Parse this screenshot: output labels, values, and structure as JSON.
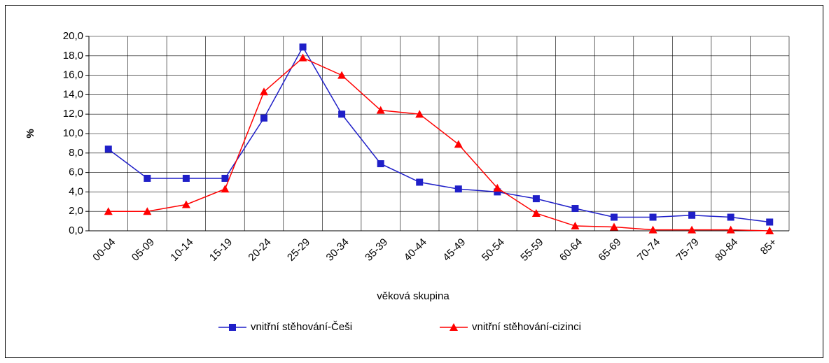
{
  "chart_data": {
    "type": "line",
    "x_label": "věková skupina",
    "y_label": "%",
    "categories": [
      "00-04",
      "05-09",
      "10-14",
      "15-19",
      "20-24",
      "25-29",
      "30-34",
      "35-39",
      "40-44",
      "45-49",
      "50-54",
      "55-59",
      "60-64",
      "65-69",
      "70-74",
      "75-79",
      "80-84",
      "85+"
    ],
    "series": [
      {
        "name": "vnitřní stěhování-Češi",
        "color": "#1f1fc8",
        "marker": "square",
        "values": [
          8.4,
          5.4,
          5.4,
          5.4,
          11.6,
          18.9,
          12.0,
          6.9,
          5.0,
          4.3,
          4.0,
          3.3,
          2.3,
          1.4,
          1.4,
          1.6,
          1.4,
          0.9
        ]
      },
      {
        "name": "vnitřní stěhování-cizinci",
        "color": "#ff0000",
        "marker": "triangle",
        "values": [
          2.0,
          2.0,
          2.7,
          4.3,
          14.3,
          17.8,
          16.0,
          12.4,
          12.0,
          8.9,
          4.4,
          1.8,
          0.5,
          0.4,
          0.1,
          0.1,
          0.1,
          0.0
        ]
      }
    ],
    "ylim": [
      0,
      20
    ],
    "yticks": [
      {
        "value": 0,
        "label": "0,0"
      },
      {
        "value": 2,
        "label": "2,0"
      },
      {
        "value": 4,
        "label": "4,0"
      },
      {
        "value": 6,
        "label": "6,0"
      },
      {
        "value": 8,
        "label": "8,0"
      },
      {
        "value": 10,
        "label": "10,0"
      },
      {
        "value": 12,
        "label": "12,0"
      },
      {
        "value": 14,
        "label": "14,0"
      },
      {
        "value": 16,
        "label": "16,0"
      },
      {
        "value": 18,
        "label": "18,0"
      },
      {
        "value": 20,
        "label": "20,0"
      }
    ],
    "grid": true,
    "legend": "bottom"
  }
}
